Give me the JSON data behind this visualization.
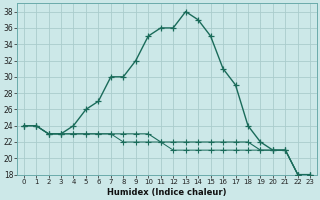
{
  "xlabel": "Humidex (Indice chaleur)",
  "bg_color": "#cce8e8",
  "grid_color": "#aacccc",
  "line_color": "#1a6b5a",
  "xlim": [
    -0.5,
    23.5
  ],
  "ylim": [
    18,
    39
  ],
  "xticks": [
    0,
    1,
    2,
    3,
    4,
    5,
    6,
    7,
    8,
    9,
    10,
    11,
    12,
    13,
    14,
    15,
    16,
    17,
    18,
    19,
    20,
    21,
    22,
    23
  ],
  "yticks": [
    18,
    20,
    22,
    24,
    26,
    28,
    30,
    32,
    34,
    36,
    38
  ],
  "line1_x": [
    0,
    1,
    2,
    3,
    4,
    5,
    6,
    7,
    8,
    9,
    10,
    11,
    12,
    13,
    14,
    15,
    16,
    17,
    18,
    19,
    20,
    21,
    22,
    23
  ],
  "line1_y": [
    24,
    24,
    23,
    23,
    24,
    26,
    27,
    30,
    30,
    32,
    35,
    36,
    36,
    38,
    37,
    35,
    31,
    29,
    24,
    22,
    21,
    21,
    18,
    18
  ],
  "line2_x": [
    0,
    1,
    2,
    3,
    4,
    5,
    6,
    7,
    8,
    9,
    10,
    11,
    12,
    13,
    14,
    15,
    16,
    17,
    18,
    19,
    20,
    21,
    22,
    23
  ],
  "line2_y": [
    24,
    24,
    23,
    23,
    23,
    23,
    23,
    23,
    23,
    23,
    23,
    22,
    22,
    22,
    22,
    22,
    22,
    22,
    22,
    21,
    21,
    21,
    18,
    18
  ],
  "line3_x": [
    0,
    1,
    2,
    3,
    4,
    5,
    6,
    7,
    8,
    9,
    10,
    11,
    12,
    13,
    14,
    15,
    16,
    17,
    18,
    19,
    20,
    21,
    22,
    23
  ],
  "line3_y": [
    24,
    24,
    23,
    23,
    23,
    23,
    23,
    23,
    22,
    22,
    22,
    22,
    21,
    21,
    21,
    21,
    21,
    21,
    21,
    21,
    21,
    21,
    18,
    18
  ]
}
